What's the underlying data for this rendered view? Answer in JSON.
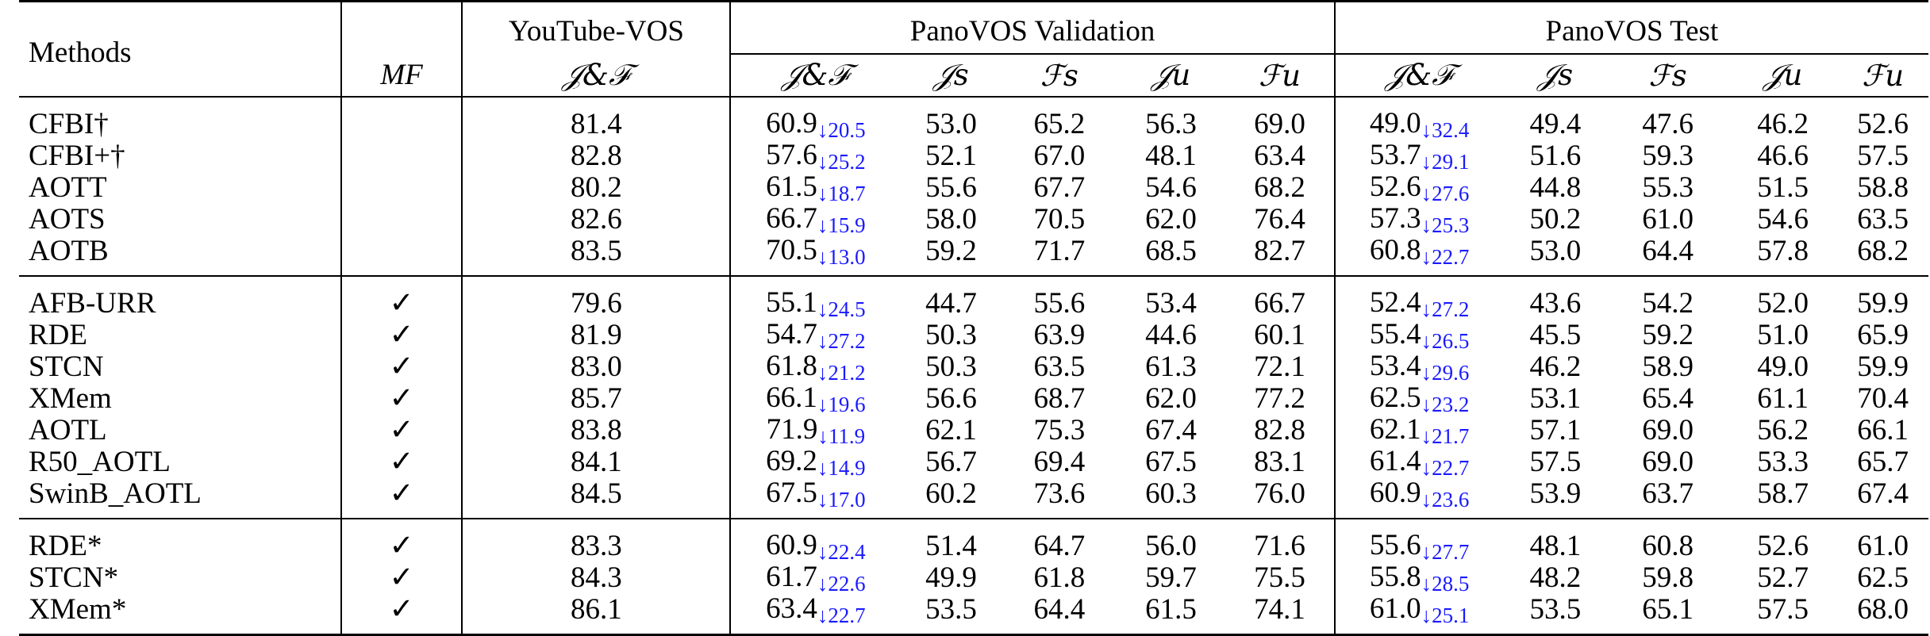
{
  "headers": {
    "methods": "Methods",
    "mf": "MF",
    "youtube": "YouTube-VOS",
    "pano_val": "PanoVOS Validation",
    "pano_test": "PanoVOS Test",
    "jf": "𝒥&ℱ",
    "js": "𝒥s",
    "fs": "ℱs",
    "ju": "𝒥u",
    "fu": "ℱu"
  },
  "groups": [
    {
      "rows": [
        {
          "method": "CFBI†",
          "mf": "",
          "yt": "81.4",
          "v_jf": "60.9",
          "v_drop": "20.5",
          "v_js": "53.0",
          "v_fs": "65.2",
          "v_ju": "56.3",
          "v_fu": "69.0",
          "t_jf": "49.0",
          "t_drop": "32.4",
          "t_js": "49.4",
          "t_fs": "47.6",
          "t_ju": "46.2",
          "t_fu": "52.6"
        },
        {
          "method": "CFBI+†",
          "mf": "",
          "yt": "82.8",
          "v_jf": "57.6",
          "v_drop": "25.2",
          "v_js": "52.1",
          "v_fs": "67.0",
          "v_ju": "48.1",
          "v_fu": "63.4",
          "t_jf": "53.7",
          "t_drop": "29.1",
          "t_js": "51.6",
          "t_fs": "59.3",
          "t_ju": "46.6",
          "t_fu": "57.5"
        },
        {
          "method": "AOTT",
          "mf": "",
          "yt": "80.2",
          "v_jf": "61.5",
          "v_drop": "18.7",
          "v_js": "55.6",
          "v_fs": "67.7",
          "v_ju": "54.6",
          "v_fu": "68.2",
          "t_jf": "52.6",
          "t_drop": "27.6",
          "t_js": "44.8",
          "t_fs": "55.3",
          "t_ju": "51.5",
          "t_fu": "58.8"
        },
        {
          "method": "AOTS",
          "mf": "",
          "yt": "82.6",
          "v_jf": "66.7",
          "v_drop": "15.9",
          "v_js": "58.0",
          "v_fs": "70.5",
          "v_ju": "62.0",
          "v_fu": "76.4",
          "t_jf": "57.3",
          "t_drop": "25.3",
          "t_js": "50.2",
          "t_fs": "61.0",
          "t_ju": "54.6",
          "t_fu": "63.5"
        },
        {
          "method": "AOTB",
          "mf": "",
          "yt": "83.5",
          "v_jf": "70.5",
          "v_drop": "13.0",
          "v_js": "59.2",
          "v_fs": "71.7",
          "v_ju": "68.5",
          "v_fu": "82.7",
          "t_jf": "60.8",
          "t_drop": "22.7",
          "t_js": "53.0",
          "t_fs": "64.4",
          "t_ju": "57.8",
          "t_fu": "68.2"
        }
      ]
    },
    {
      "rows": [
        {
          "method": "AFB-URR",
          "mf": "✓",
          "yt": "79.6",
          "v_jf": "55.1",
          "v_drop": "24.5",
          "v_js": "44.7",
          "v_fs": "55.6",
          "v_ju": "53.4",
          "v_fu": "66.7",
          "t_jf": "52.4",
          "t_drop": "27.2",
          "t_js": "43.6",
          "t_fs": "54.2",
          "t_ju": "52.0",
          "t_fu": "59.9"
        },
        {
          "method": "RDE",
          "mf": "✓",
          "yt": "81.9",
          "v_jf": "54.7",
          "v_drop": "27.2",
          "v_js": "50.3",
          "v_fs": "63.9",
          "v_ju": "44.6",
          "v_fu": "60.1",
          "t_jf": "55.4",
          "t_drop": "26.5",
          "t_js": "45.5",
          "t_fs": "59.2",
          "t_ju": "51.0",
          "t_fu": "65.9"
        },
        {
          "method": "STCN",
          "mf": "✓",
          "yt": "83.0",
          "v_jf": "61.8",
          "v_drop": "21.2",
          "v_js": "50.3",
          "v_fs": "63.5",
          "v_ju": "61.3",
          "v_fu": "72.1",
          "t_jf": "53.4",
          "t_drop": "29.6",
          "t_js": "46.2",
          "t_fs": "58.9",
          "t_ju": "49.0",
          "t_fu": "59.9"
        },
        {
          "method": "XMem",
          "mf": "✓",
          "yt": "85.7",
          "v_jf": "66.1",
          "v_drop": "19.6",
          "v_js": "56.6",
          "v_fs": "68.7",
          "v_ju": "62.0",
          "v_fu": "77.2",
          "t_jf": "62.5",
          "t_drop": "23.2",
          "t_js": "53.1",
          "t_fs": "65.4",
          "t_ju": "61.1",
          "t_fu": "70.4"
        },
        {
          "method": "AOTL",
          "mf": "✓",
          "yt": "83.8",
          "v_jf": "71.9",
          "v_drop": "11.9",
          "v_js": "62.1",
          "v_fs": "75.3",
          "v_ju": "67.4",
          "v_fu": "82.8",
          "t_jf": "62.1",
          "t_drop": "21.7",
          "t_js": "57.1",
          "t_fs": "69.0",
          "t_ju": "56.2",
          "t_fu": "66.1"
        },
        {
          "method": "R50_AOTL",
          "mf": "✓",
          "yt": "84.1",
          "v_jf": "69.2",
          "v_drop": "14.9",
          "v_js": "56.7",
          "v_fs": "69.4",
          "v_ju": "67.5",
          "v_fu": "83.1",
          "t_jf": "61.4",
          "t_drop": "22.7",
          "t_js": "57.5",
          "t_fs": "69.0",
          "t_ju": "53.3",
          "t_fu": "65.7"
        },
        {
          "method": "SwinB_AOTL",
          "mf": "✓",
          "yt": "84.5",
          "v_jf": "67.5",
          "v_drop": "17.0",
          "v_js": "60.2",
          "v_fs": "73.6",
          "v_ju": "60.3",
          "v_fu": "76.0",
          "t_jf": "60.9",
          "t_drop": "23.6",
          "t_js": "53.9",
          "t_fs": "63.7",
          "t_ju": "58.7",
          "t_fu": "67.4"
        }
      ]
    },
    {
      "rows": [
        {
          "method": "RDE*",
          "mf": "✓",
          "yt": "83.3",
          "v_jf": "60.9",
          "v_drop": "22.4",
          "v_js": "51.4",
          "v_fs": "64.7",
          "v_ju": "56.0",
          "v_fu": "71.6",
          "t_jf": "55.6",
          "t_drop": "27.7",
          "t_js": "48.1",
          "t_fs": "60.8",
          "t_ju": "52.6",
          "t_fu": "61.0"
        },
        {
          "method": "STCN*",
          "mf": "✓",
          "yt": "84.3",
          "v_jf": "61.7",
          "v_drop": "22.6",
          "v_js": "49.9",
          "v_fs": "61.8",
          "v_ju": "59.7",
          "v_fu": "75.5",
          "t_jf": "55.8",
          "t_drop": "28.5",
          "t_js": "48.2",
          "t_fs": "59.8",
          "t_ju": "52.7",
          "t_fu": "62.5"
        },
        {
          "method": "XMem*",
          "mf": "✓",
          "yt": "86.1",
          "v_jf": "63.4",
          "v_drop": "22.7",
          "v_js": "53.5",
          "v_fs": "64.4",
          "v_ju": "61.5",
          "v_fu": "74.1",
          "t_jf": "61.0",
          "t_drop": "25.1",
          "t_js": "53.5",
          "t_fs": "65.1",
          "t_ju": "57.5",
          "t_fu": "68.0"
        }
      ]
    }
  ]
}
